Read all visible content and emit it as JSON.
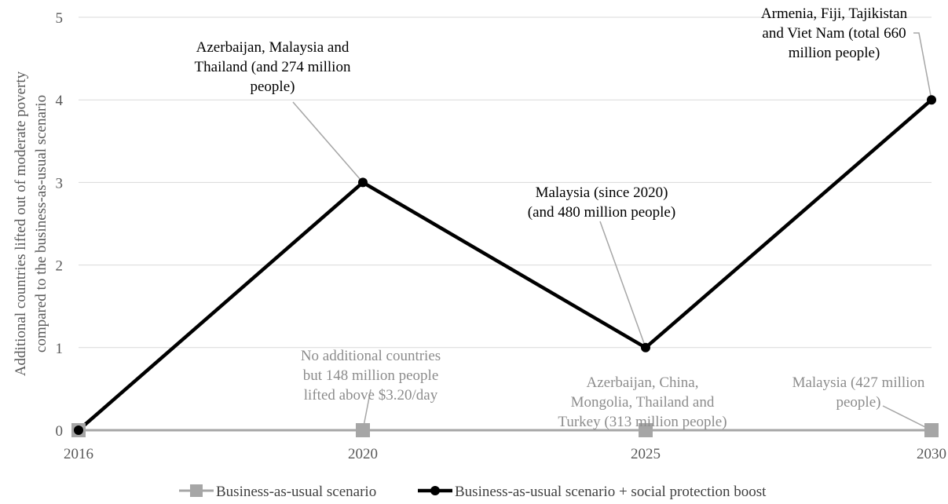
{
  "chart_data": {
    "type": "line",
    "ylabel": "Additional countries lifted out of moderate poverty compared to the business-as-usual scenario",
    "ylabel_lines": [
      "Additional countries lifted out of moderate poverty",
      "compared to the business-as-usual scenario"
    ],
    "xlabel": "",
    "categories": [
      "2016",
      "2020",
      "2025",
      "2030"
    ],
    "x": [
      2016,
      2020,
      2025,
      2030
    ],
    "ylim": [
      0,
      5
    ],
    "yticks": [
      "0",
      "1",
      "2",
      "3",
      "4",
      "5"
    ],
    "grid": true,
    "legend_position": "bottom",
    "series": [
      {
        "name": "Business-as-usual scenario",
        "values": [
          0,
          0,
          0,
          0
        ],
        "color": "#a6a6a6",
        "marker": "square"
      },
      {
        "name": "Business-as-usual scenario + social protection boost",
        "values": [
          0,
          3,
          1,
          4
        ],
        "color": "#000000",
        "marker": "circle"
      }
    ],
    "annotations": [
      {
        "series": 1,
        "point": 1,
        "color": "#000000",
        "lines": [
          "Azerbaijan, Malaysia and",
          "Thailand (and 274 million",
          "people)"
        ]
      },
      {
        "series": 1,
        "point": 2,
        "color": "#000000",
        "lines": [
          "Malaysia (since 2020)",
          "(and 480 million people)"
        ]
      },
      {
        "series": 1,
        "point": 3,
        "color": "#000000",
        "lines": [
          "Armenia, Fiji, Tajikistan",
          "and Viet Nam (total 660",
          "million people)"
        ]
      },
      {
        "series": 0,
        "point": 1,
        "color": "#8c8c8c",
        "lines": [
          "No additional countries",
          "but 148 million people",
          "lifted above $3.20/day"
        ]
      },
      {
        "series": 0,
        "point": 2,
        "color": "#8c8c8c",
        "lines": [
          "Azerbaijan, China,",
          "Mongolia, Thailand and",
          "Turkey (313 million people)"
        ]
      },
      {
        "series": 0,
        "point": 3,
        "color": "#8c8c8c",
        "lines": [
          "Malaysia (427 million",
          "people)"
        ]
      }
    ]
  }
}
